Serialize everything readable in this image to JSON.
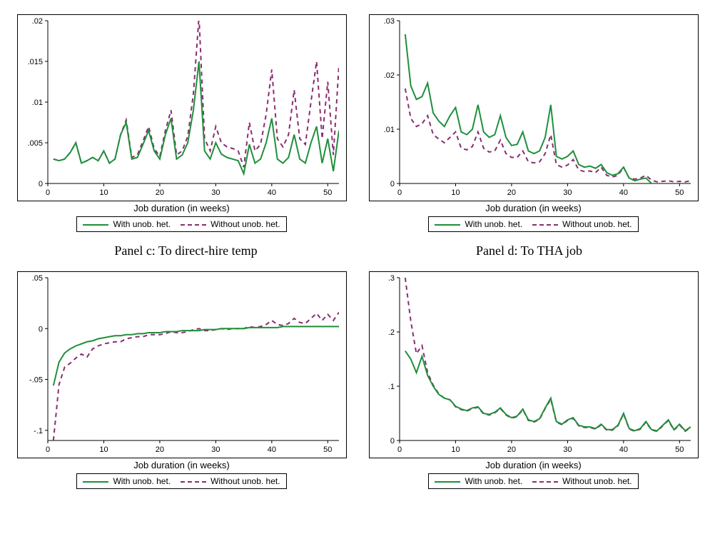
{
  "global": {
    "xlabel": "Job duration (in weeks)",
    "legend": {
      "s1": "With unob. het.",
      "s2": "Without unob. het."
    },
    "colors": {
      "s1": "#1f8f3b",
      "s2": "#8a2d6f",
      "axis": "#000000",
      "background": "#ffffff"
    },
    "line_width": 2,
    "s1_dash": "none",
    "s2_dash": "6,5",
    "xlim": [
      0,
      52
    ],
    "xticks": [
      0,
      10,
      20,
      30,
      40,
      50
    ],
    "tick_fontsize": 11,
    "label_fontsize": 13
  },
  "captions": {
    "c": "Panel c: To direct-hire temp",
    "d": "Panel d: To THA job"
  },
  "panels": {
    "topLeft": {
      "ylim": [
        0,
        0.02
      ],
      "yticks": [
        0,
        0.005,
        0.01,
        0.015,
        0.02
      ],
      "yticklabels": [
        "0",
        ".005",
        ".01",
        ".015",
        ".02"
      ],
      "x": [
        1,
        2,
        3,
        4,
        5,
        6,
        7,
        8,
        9,
        10,
        11,
        12,
        13,
        14,
        15,
        16,
        17,
        18,
        19,
        20,
        21,
        22,
        23,
        24,
        25,
        26,
        27,
        28,
        29,
        30,
        31,
        32,
        33,
        34,
        35,
        36,
        37,
        38,
        39,
        40,
        41,
        42,
        43,
        44,
        45,
        46,
        47,
        48,
        49,
        50,
        51,
        52
      ],
      "s1": [
        0.003,
        0.0028,
        0.003,
        0.0038,
        0.005,
        0.0025,
        0.0028,
        0.0032,
        0.0028,
        0.004,
        0.0025,
        0.003,
        0.006,
        0.0075,
        0.003,
        0.0032,
        0.0048,
        0.0065,
        0.004,
        0.003,
        0.006,
        0.008,
        0.003,
        0.0035,
        0.005,
        0.009,
        0.015,
        0.004,
        0.003,
        0.005,
        0.0036,
        0.0032,
        0.003,
        0.0028,
        0.0012,
        0.0048,
        0.0025,
        0.003,
        0.005,
        0.008,
        0.003,
        0.0025,
        0.0032,
        0.006,
        0.003,
        0.0025,
        0.005,
        0.007,
        0.0025,
        0.0055,
        0.0015,
        0.0065
      ],
      "s2": [
        0.003,
        0.0028,
        0.003,
        0.0038,
        0.005,
        0.0025,
        0.0028,
        0.0032,
        0.0028,
        0.004,
        0.0025,
        0.003,
        0.006,
        0.0078,
        0.0032,
        0.0035,
        0.0052,
        0.007,
        0.0043,
        0.0033,
        0.0065,
        0.009,
        0.0035,
        0.004,
        0.0058,
        0.011,
        0.0205,
        0.0055,
        0.004,
        0.007,
        0.005,
        0.0045,
        0.0043,
        0.004,
        0.002,
        0.0075,
        0.004,
        0.0048,
        0.0085,
        0.014,
        0.0055,
        0.0045,
        0.006,
        0.0115,
        0.0055,
        0.0048,
        0.01,
        0.015,
        0.0055,
        0.0125,
        0.0035,
        0.0145
      ],
      "caption": ""
    },
    "topRight": {
      "ylim": [
        0,
        0.03
      ],
      "yticks": [
        0,
        0.01,
        0.02,
        0.03
      ],
      "yticklabels": [
        "0",
        ".01",
        ".02",
        ".03"
      ],
      "x": [
        1,
        2,
        3,
        4,
        5,
        6,
        7,
        8,
        9,
        10,
        11,
        12,
        13,
        14,
        15,
        16,
        17,
        18,
        19,
        20,
        21,
        22,
        23,
        24,
        25,
        26,
        27,
        28,
        29,
        30,
        31,
        32,
        33,
        34,
        35,
        36,
        37,
        38,
        39,
        40,
        41,
        42,
        43,
        44,
        45,
        46,
        47,
        48,
        49,
        50,
        51,
        52
      ],
      "s1": [
        0.0275,
        0.018,
        0.0155,
        0.016,
        0.0185,
        0.013,
        0.0115,
        0.0105,
        0.0125,
        0.014,
        0.0095,
        0.009,
        0.01,
        0.0145,
        0.0095,
        0.0085,
        0.009,
        0.0125,
        0.0085,
        0.007,
        0.0072,
        0.0095,
        0.006,
        0.0055,
        0.006,
        0.0085,
        0.0145,
        0.005,
        0.0045,
        0.005,
        0.006,
        0.0035,
        0.003,
        0.0032,
        0.0028,
        0.0035,
        0.002,
        0.0015,
        0.0018,
        0.003,
        0.001,
        0.0005,
        0.0008,
        0.001,
        0.0,
        -0.0008,
        -0.001,
        -0.001,
        -0.0015,
        -0.0015,
        -0.0018,
        -0.002
      ],
      "s2": [
        0.0175,
        0.012,
        0.0105,
        0.011,
        0.0125,
        0.009,
        0.0082,
        0.0075,
        0.0085,
        0.0095,
        0.0065,
        0.0062,
        0.0068,
        0.0095,
        0.0065,
        0.0058,
        0.006,
        0.008,
        0.0055,
        0.0048,
        0.0048,
        0.006,
        0.004,
        0.0038,
        0.004,
        0.0055,
        0.009,
        0.0035,
        0.003,
        0.0034,
        0.0044,
        0.0025,
        0.0022,
        0.0023,
        0.002,
        0.003,
        0.0015,
        0.0012,
        0.0015,
        0.003,
        0.001,
        0.0008,
        0.001,
        0.0015,
        0.0006,
        0.0003,
        0.0004,
        0.0005,
        0.0003,
        0.0004,
        0.0003,
        0.0005
      ],
      "caption": ""
    },
    "bottomLeft": {
      "ylim": [
        -0.11,
        0.05
      ],
      "yticks": [
        -0.1,
        -0.05,
        0,
        0.05
      ],
      "yticklabels": [
        "-.1",
        "-.05",
        "0",
        ".05"
      ],
      "x": [
        1,
        2,
        3,
        4,
        5,
        6,
        7,
        8,
        9,
        10,
        11,
        12,
        13,
        14,
        15,
        16,
        17,
        18,
        19,
        20,
        21,
        22,
        23,
        24,
        25,
        26,
        27,
        28,
        29,
        30,
        31,
        32,
        33,
        34,
        35,
        36,
        37,
        38,
        39,
        40,
        41,
        42,
        43,
        44,
        45,
        46,
        47,
        48,
        49,
        50,
        51,
        52
      ],
      "s1": [
        -0.056,
        -0.033,
        -0.024,
        -0.02,
        -0.017,
        -0.015,
        -0.013,
        -0.012,
        -0.01,
        -0.009,
        -0.008,
        -0.007,
        -0.007,
        -0.006,
        -0.006,
        -0.005,
        -0.005,
        -0.004,
        -0.004,
        -0.004,
        -0.003,
        -0.003,
        -0.003,
        -0.002,
        -0.002,
        -0.002,
        -0.002,
        -0.001,
        -0.001,
        -0.001,
        0.0,
        0.0,
        0.0,
        0.0,
        0.0,
        0.001,
        0.001,
        0.001,
        0.001,
        0.001,
        0.001,
        0.002,
        0.002,
        0.002,
        0.002,
        0.002,
        0.002,
        0.002,
        0.002,
        0.002,
        0.002,
        0.002
      ],
      "s2": [
        -0.11,
        -0.055,
        -0.038,
        -0.034,
        -0.029,
        -0.025,
        -0.028,
        -0.02,
        -0.017,
        -0.015,
        -0.014,
        -0.013,
        -0.013,
        -0.01,
        -0.009,
        -0.008,
        -0.008,
        -0.006,
        -0.006,
        -0.006,
        -0.005,
        -0.003,
        -0.004,
        -0.004,
        -0.003,
        -0.001,
        0.0,
        -0.002,
        -0.002,
        -0.001,
        0.0,
        -0.001,
        0.0,
        0.0,
        0.0,
        0.002,
        0.001,
        0.002,
        0.004,
        0.008,
        0.004,
        0.003,
        0.005,
        0.01,
        0.006,
        0.005,
        0.01,
        0.015,
        0.008,
        0.014,
        0.008,
        0.016
      ],
      "caption": ""
    },
    "bottomRight": {
      "ylim": [
        0,
        0.3
      ],
      "yticks": [
        0,
        0.1,
        0.2,
        0.3
      ],
      "yticklabels": [
        "0",
        ".1",
        ".2",
        ".3"
      ],
      "x": [
        1,
        2,
        3,
        4,
        5,
        6,
        7,
        8,
        9,
        10,
        11,
        12,
        13,
        14,
        15,
        16,
        17,
        18,
        19,
        20,
        21,
        22,
        23,
        24,
        25,
        26,
        27,
        28,
        29,
        30,
        31,
        32,
        33,
        34,
        35,
        36,
        37,
        38,
        39,
        40,
        41,
        42,
        43,
        44,
        45,
        46,
        47,
        48,
        49,
        50,
        51,
        52
      ],
      "s1": [
        0.165,
        0.15,
        0.125,
        0.155,
        0.12,
        0.1,
        0.085,
        0.078,
        0.075,
        0.063,
        0.058,
        0.055,
        0.06,
        0.062,
        0.05,
        0.048,
        0.052,
        0.06,
        0.048,
        0.042,
        0.045,
        0.058,
        0.038,
        0.035,
        0.04,
        0.06,
        0.078,
        0.035,
        0.03,
        0.038,
        0.042,
        0.028,
        0.025,
        0.025,
        0.022,
        0.03,
        0.02,
        0.02,
        0.028,
        0.05,
        0.022,
        0.018,
        0.022,
        0.035,
        0.02,
        0.018,
        0.028,
        0.038,
        0.02,
        0.03,
        0.018,
        0.025
      ],
      "s2": [
        0.3,
        0.22,
        0.16,
        0.175,
        0.125,
        0.102,
        0.086,
        0.078,
        0.075,
        0.062,
        0.057,
        0.054,
        0.059,
        0.061,
        0.049,
        0.047,
        0.051,
        0.059,
        0.047,
        0.041,
        0.044,
        0.057,
        0.037,
        0.034,
        0.039,
        0.059,
        0.076,
        0.034,
        0.029,
        0.037,
        0.041,
        0.027,
        0.024,
        0.024,
        0.021,
        0.029,
        0.019,
        0.019,
        0.027,
        0.049,
        0.021,
        0.017,
        0.021,
        0.034,
        0.019,
        0.017,
        0.027,
        0.037,
        0.019,
        0.029,
        0.017,
        0.024
      ],
      "caption": ""
    }
  }
}
